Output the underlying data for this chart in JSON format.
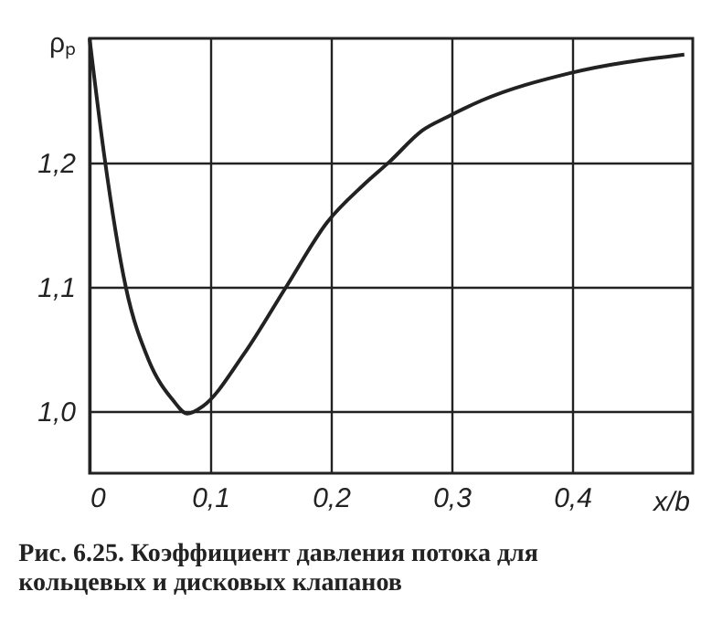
{
  "chart_data": {
    "type": "line",
    "xlabel": "x/b",
    "ylabel": "ρₚ",
    "x": [
      0,
      0.012,
      0.03,
      0.049,
      0.069,
      0.081,
      0.094,
      0.128,
      0.163,
      0.197,
      0.227,
      0.249,
      0.276,
      0.297,
      0.325,
      0.398,
      0.493
    ],
    "series": [
      {
        "color": "#222222",
        "values": [
          1.3,
          1.207,
          1.1,
          1.041,
          1.009,
          0.998,
          1.004,
          1.046,
          1.1,
          1.152,
          1.182,
          1.201,
          1.226,
          1.237,
          1.25,
          1.272,
          1.287
        ]
      }
    ],
    "xlim": [
      0,
      0.5
    ],
    "xticks": [
      {
        "value": 0,
        "label": "0"
      },
      {
        "value": 0.1,
        "label": "0,1"
      },
      {
        "value": 0.2,
        "label": "0,2"
      },
      {
        "value": 0.3,
        "label": "0,3"
      },
      {
        "value": 0.4,
        "label": "0,4"
      }
    ],
    "ylim": [
      0.95,
      1.3
    ],
    "yticks": [
      {
        "value": 1.0,
        "label": "1,0"
      },
      {
        "value": 1.1,
        "label": "1,1"
      },
      {
        "value": 1.2,
        "label": "1,2"
      }
    ],
    "grid": true,
    "annotations": [
      "Рис. 6.25. Коэффициент давления потока для кольцевых и дисковых клапанов"
    ]
  }
}
